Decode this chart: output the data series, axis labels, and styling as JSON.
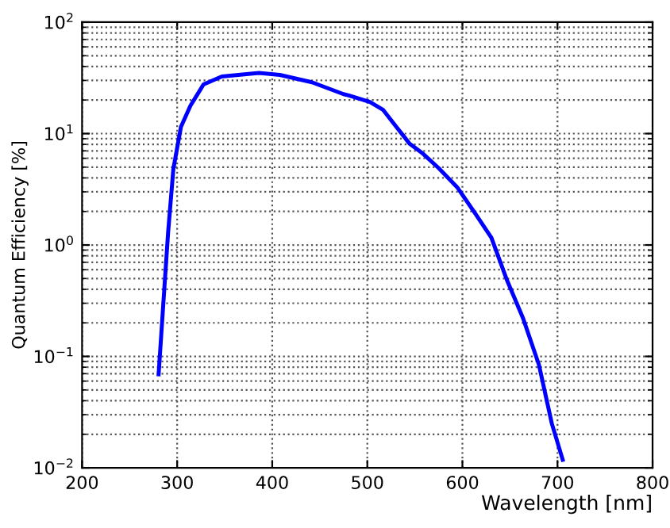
{
  "chart_data": {
    "type": "line",
    "xlabel": "Wavelength [nm]",
    "ylabel": "Quantum Efficiency [%]",
    "series": [
      {
        "color": "#0000ff",
        "x": [
          280.5,
          286,
          290.5,
          296,
          304,
          314,
          327.7,
          347,
          386,
          408,
          441.7,
          475,
          480.5,
          502.7,
          516.7,
          530.5,
          544.5,
          558.5,
          575,
          594.5,
          613.8,
          630.5,
          647,
          663.8,
          680.5,
          694,
          705.5
        ],
        "values": [
          0.069,
          0.35,
          1.3,
          4.8,
          11.5,
          17.8,
          27.6,
          32.5,
          35,
          33.6,
          28.9,
          22.6,
          22,
          19.2,
          16.3,
          11.5,
          8.1,
          6.6,
          4.9,
          3.3,
          1.9,
          1.16,
          0.48,
          0.22,
          0.084,
          0.025,
          0.0118
        ]
      }
    ],
    "xlim": [
      200,
      800
    ],
    "xticks": [
      200,
      300,
      400,
      500,
      600,
      700,
      800
    ],
    "ylim": [
      0.01,
      100
    ],
    "yticks": [
      {
        "value": 0.01,
        "label": "10$^{−2}$"
      },
      {
        "value": 0.1,
        "label": "10$^{−1}$"
      },
      {
        "value": 1,
        "label": "10$^{0}$"
      },
      {
        "value": 10,
        "label": "10$^{1}$"
      },
      {
        "value": 100,
        "label": "10$^{2}$"
      }
    ],
    "log": "y",
    "grid": true,
    "line_style": "solid",
    "marker": "none"
  }
}
